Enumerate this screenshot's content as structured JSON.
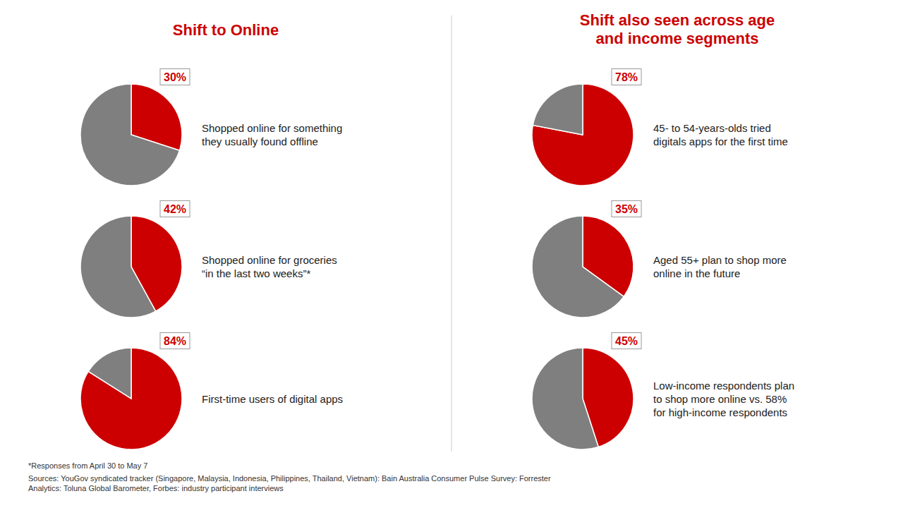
{
  "chart_data": [
    {
      "type": "pie",
      "title": "Shift to Online",
      "values": [
        30,
        70
      ],
      "value_labels": [
        "30%",
        null
      ],
      "data_labels": true,
      "colors": [
        "#CC0000",
        "#7f7f7f"
      ],
      "annotations": [
        "Shopped online for something",
        "they usually found offline"
      ]
    },
    {
      "type": "pie",
      "values": [
        42,
        58
      ],
      "value_labels": [
        "42%",
        null
      ],
      "data_labels": true,
      "colors": [
        "#CC0000",
        "#7f7f7f"
      ],
      "annotations": [
        "Shopped online for groceries",
        "“in the last two weeks”*"
      ]
    },
    {
      "type": "pie",
      "values": [
        84,
        16
      ],
      "value_labels": [
        "84%",
        null
      ],
      "data_labels": true,
      "colors": [
        "#CC0000",
        "#7f7f7f"
      ],
      "annotations": [
        "First-time users of digital apps"
      ]
    },
    {
      "type": "pie",
      "title": "Shift also seen across age\nand income segments",
      "values": [
        78,
        22
      ],
      "value_labels": [
        "78%",
        null
      ],
      "data_labels": true,
      "colors": [
        "#CC0000",
        "#7f7f7f"
      ],
      "annotations": [
        "45- to 54-years-olds tried",
        "digitals apps for the first time"
      ]
    },
    {
      "type": "pie",
      "values": [
        35,
        65
      ],
      "value_labels": [
        "35%",
        null
      ],
      "data_labels": true,
      "colors": [
        "#CC0000",
        "#7f7f7f"
      ],
      "annotations": [
        "Aged 55+ plan to shop more",
        "online in the future"
      ]
    },
    {
      "type": "pie",
      "values": [
        45,
        55
      ],
      "value_labels": [
        "45%",
        null
      ],
      "data_labels": true,
      "colors": [
        "#CC0000",
        "#7f7f7f"
      ],
      "annotations": [
        "Low-income respondents plan",
        "to shop more online vs. 58%",
        "for high-income respondents"
      ]
    }
  ],
  "annotations": [
    "*Responses from April 30 to May 7",
    "Sources: YouGov syndicated tracker (Singapore, Malaysia, Indonesia, Philippines, Thailand, Vietnam): Bain Australia Consumer Pulse Survey: Forrester\nAnalytics: Toluna Global Barometer, Forbes: industry participant interviews"
  ]
}
